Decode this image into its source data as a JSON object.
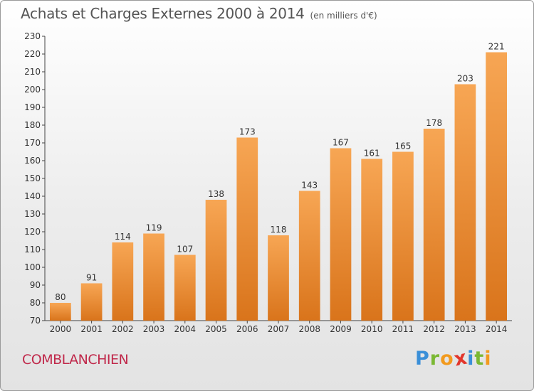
{
  "title": "Achats et Charges Externes 2000 à 2014",
  "unit_note": "(en milliers d'€)",
  "commune": "COMBLANCHIEN",
  "logo": {
    "letters": [
      "P",
      "r",
      "o",
      "x",
      "i",
      "t",
      "i"
    ],
    "colors": [
      "#3a8fd8",
      "#7ab833",
      "#f29a1e",
      "#e2362c",
      "#3a8fd8",
      "#7ab833",
      "#f29a1e"
    ]
  },
  "colors": {
    "bar_top": "#f7a654",
    "bar_bottom": "#d9741b",
    "title": "#555555",
    "commune": "#c0294b"
  },
  "chart_data": {
    "type": "bar",
    "categories": [
      "2000",
      "2001",
      "2002",
      "2003",
      "2004",
      "2005",
      "2006",
      "2007",
      "2008",
      "2009",
      "2010",
      "2011",
      "2012",
      "2013",
      "2014"
    ],
    "values": [
      80,
      91,
      114,
      119,
      107,
      138,
      173,
      118,
      143,
      167,
      161,
      165,
      178,
      203,
      221
    ],
    "ylim": [
      70,
      230
    ],
    "yticks": [
      70,
      80,
      90,
      100,
      110,
      120,
      130,
      140,
      150,
      160,
      170,
      180,
      190,
      200,
      210,
      220,
      230
    ],
    "grid": false,
    "data_labels": true
  }
}
